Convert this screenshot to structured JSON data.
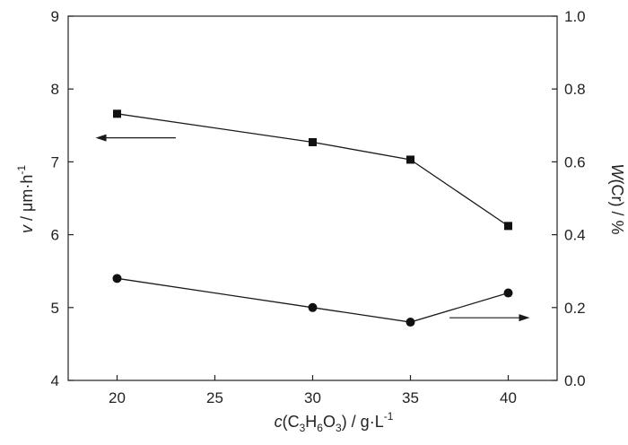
{
  "chart_data": {
    "type": "line",
    "x": [
      20,
      30,
      35,
      40
    ],
    "x_ticks": [
      20,
      25,
      30,
      35,
      40
    ],
    "xlim": [
      17.5,
      42.5
    ],
    "xlabel": {
      "italic": "c",
      "open": "(C",
      "sub1": "3",
      "h": "H",
      "sub2": "6",
      "o": "O",
      "sub3": "3",
      "close": ") / g·L",
      "sup": "-1"
    },
    "y_left": {
      "ticks": [
        4,
        5,
        6,
        7,
        8,
        9
      ],
      "ylim": [
        4,
        9
      ],
      "label": {
        "italic": "v",
        "rest": " / μm·h",
        "sup": "-1"
      }
    },
    "y_right": {
      "ticks": [
        "0.0",
        "0.2",
        "0.4",
        "0.6",
        "0.8",
        "1.0"
      ],
      "ylim": [
        0,
        1
      ],
      "label": {
        "italic": "W",
        "rest": "(Cr) / %"
      }
    },
    "series": [
      {
        "axis": "left",
        "marker": "square",
        "values": [
          7.66,
          7.27,
          7.03,
          6.12
        ]
      },
      {
        "axis": "right",
        "marker": "circle",
        "values": [
          0.28,
          0.2,
          0.16,
          0.24
        ]
      }
    ],
    "arrows": [
      {
        "direction": "left",
        "points_to": "left-axis",
        "x_from": 23.0,
        "x_to": 18.9,
        "y": 7.33,
        "y_axis": "left"
      },
      {
        "direction": "right",
        "points_to": "right-axis",
        "x_from": 37.0,
        "x_to": 41.1,
        "y": 0.172,
        "y_axis": "right"
      }
    ],
    "grid": false,
    "legend": "none",
    "colors": {
      "line": "#1a1a1a",
      "marker": "#111111",
      "axis": "#222222"
    }
  }
}
